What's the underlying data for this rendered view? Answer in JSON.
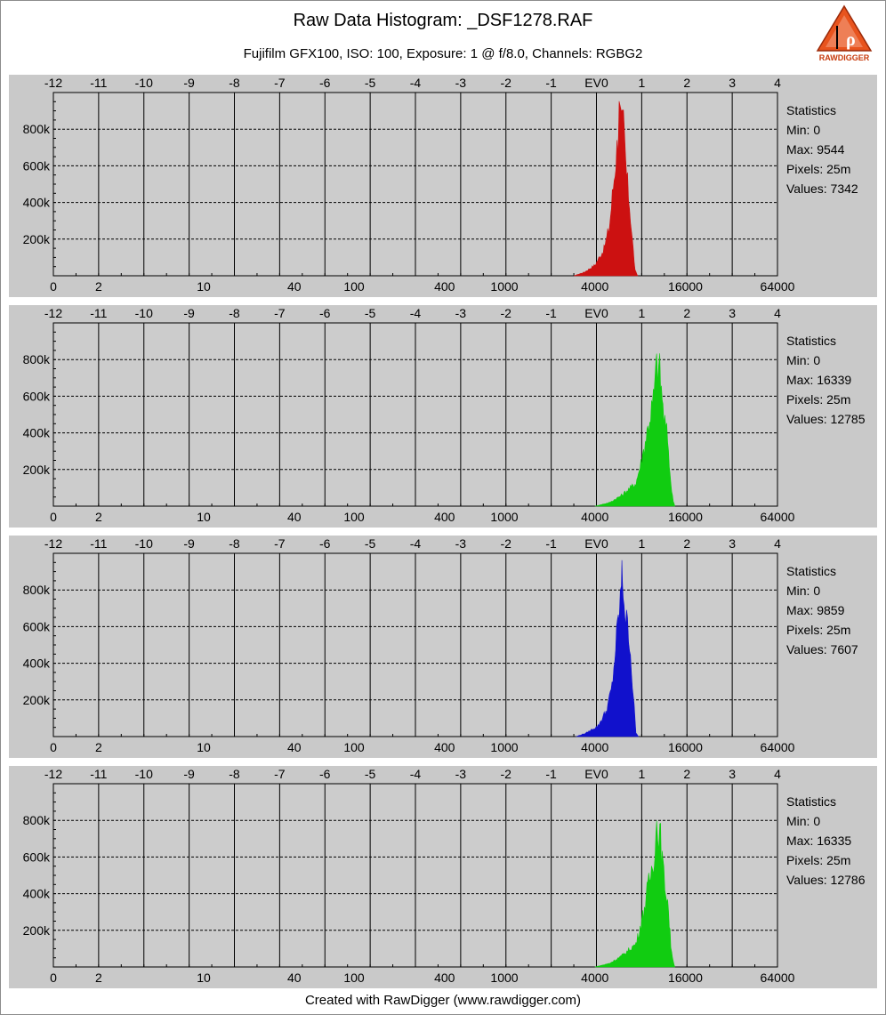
{
  "title": "Raw Data Histogram: _DSF1278.RAF",
  "subtitle": "Fujifilm GFX100, ISO: 100, Exposure: 1 @ f/8.0, Channels: RGBG2",
  "footer": "Created with RawDigger (www.rawdigger.com)",
  "logo_text": "RAWDIGGER",
  "colors": {
    "panel_bg": "#c9c9c9",
    "plot_bg": "#cccccc",
    "red": "#cc1111",
    "green": "#11cc11",
    "blue": "#1111cc",
    "logo_orange": "#e8541e"
  },
  "chart_data": [
    {
      "type": "area",
      "channel": "R",
      "color": "#cc1111",
      "ev_ticks": [
        "-12",
        "-11",
        "-10",
        "-9",
        "-8",
        "-7",
        "-6",
        "-5",
        "-4",
        "-3",
        "-2",
        "-1",
        "EV0",
        "1",
        "2",
        "3",
        "4"
      ],
      "x_ticks": [
        "0",
        "2",
        "10",
        "40",
        "100",
        "400",
        "1000",
        "4000",
        "16000",
        "64000"
      ],
      "y_ticks": [
        "200k",
        "400k",
        "600k",
        "800k"
      ],
      "ylim": [
        0,
        1000000
      ],
      "xlim_log2": [
        0,
        16
      ],
      "stats": {
        "label": "Statistics",
        "min": "Min: 0",
        "max": "Max: 9544",
        "pixels": "Pixels: 25m",
        "values": "Values: 7342"
      },
      "peaks": [
        {
          "value": 2900,
          "count": 0
        },
        {
          "value": 3400,
          "count": 20000
        },
        {
          "value": 4000,
          "count": 60000
        },
        {
          "value": 4600,
          "count": 150000
        },
        {
          "value": 5000,
          "count": 280000
        },
        {
          "value": 5300,
          "count": 500000
        },
        {
          "value": 5600,
          "count": 720000
        },
        {
          "value": 5800,
          "count": 920000
        },
        {
          "value": 6000,
          "count": 820000
        },
        {
          "value": 6200,
          "count": 850000
        },
        {
          "value": 6500,
          "count": 560000
        },
        {
          "value": 6800,
          "count": 400000
        },
        {
          "value": 7100,
          "count": 200000
        },
        {
          "value": 7400,
          "count": 30000
        },
        {
          "value": 7700,
          "count": 0
        }
      ]
    },
    {
      "type": "area",
      "channel": "G",
      "color": "#11cc11",
      "ev_ticks": [
        "-12",
        "-11",
        "-10",
        "-9",
        "-8",
        "-7",
        "-6",
        "-5",
        "-4",
        "-3",
        "-2",
        "-1",
        "EV0",
        "1",
        "2",
        "3",
        "4"
      ],
      "x_ticks": [
        "0",
        "2",
        "10",
        "40",
        "100",
        "400",
        "1000",
        "4000",
        "16000",
        "64000"
      ],
      "y_ticks": [
        "200k",
        "400k",
        "600k",
        "800k"
      ],
      "ylim": [
        0,
        1000000
      ],
      "xlim_log2": [
        0,
        16
      ],
      "stats": {
        "label": "Statistics",
        "min": "Min: 0",
        "max": "Max: 16339",
        "pixels": "Pixels: 25m",
        "values": "Values: 12785"
      },
      "peaks": [
        {
          "value": 4000,
          "count": 0
        },
        {
          "value": 5000,
          "count": 20000
        },
        {
          "value": 6000,
          "count": 60000
        },
        {
          "value": 7500,
          "count": 130000
        },
        {
          "value": 8200,
          "count": 260000
        },
        {
          "value": 9000,
          "count": 440000
        },
        {
          "value": 9800,
          "count": 600000
        },
        {
          "value": 10300,
          "count": 800000
        },
        {
          "value": 10800,
          "count": 760000
        },
        {
          "value": 11500,
          "count": 500000
        },
        {
          "value": 12200,
          "count": 380000
        },
        {
          "value": 12800,
          "count": 120000
        },
        {
          "value": 13300,
          "count": 30000
        },
        {
          "value": 13600,
          "count": 0
        }
      ]
    },
    {
      "type": "area",
      "channel": "B",
      "color": "#1111cc",
      "ev_ticks": [
        "-12",
        "-11",
        "-10",
        "-9",
        "-8",
        "-7",
        "-6",
        "-5",
        "-4",
        "-3",
        "-2",
        "-1",
        "EV0",
        "1",
        "2",
        "3",
        "4"
      ],
      "x_ticks": [
        "0",
        "2",
        "10",
        "40",
        "100",
        "400",
        "1000",
        "4000",
        "16000",
        "64000"
      ],
      "y_ticks": [
        "200k",
        "400k",
        "600k",
        "800k"
      ],
      "ylim": [
        0,
        1000000
      ],
      "xlim_log2": [
        0,
        16
      ],
      "stats": {
        "label": "Statistics",
        "min": "Min: 0",
        "max": "Max: 9859",
        "pixels": "Pixels: 25m",
        "values": "Values: 7607"
      },
      "peaks": [
        {
          "value": 3000,
          "count": 0
        },
        {
          "value": 3500,
          "count": 20000
        },
        {
          "value": 4200,
          "count": 60000
        },
        {
          "value": 4800,
          "count": 150000
        },
        {
          "value": 5200,
          "count": 280000
        },
        {
          "value": 5500,
          "count": 500000
        },
        {
          "value": 5800,
          "count": 700000
        },
        {
          "value": 6000,
          "count": 850000
        },
        {
          "value": 6100,
          "count": 910000
        },
        {
          "value": 6400,
          "count": 660000
        },
        {
          "value": 6800,
          "count": 560000
        },
        {
          "value": 7100,
          "count": 300000
        },
        {
          "value": 7500,
          "count": 20000
        },
        {
          "value": 7800,
          "count": 0
        }
      ]
    },
    {
      "type": "area",
      "channel": "G2",
      "color": "#11cc11",
      "ev_ticks": [
        "-12",
        "-11",
        "-10",
        "-9",
        "-8",
        "-7",
        "-6",
        "-5",
        "-4",
        "-3",
        "-2",
        "-1",
        "EV0",
        "1",
        "2",
        "3",
        "4"
      ],
      "x_ticks": [
        "0",
        "2",
        "10",
        "40",
        "100",
        "400",
        "1000",
        "4000",
        "16000",
        "64000"
      ],
      "y_ticks": [
        "200k",
        "400k",
        "600k",
        "800k"
      ],
      "ylim": [
        0,
        1000000
      ],
      "xlim_log2": [
        0,
        16
      ],
      "stats": {
        "label": "Statistics",
        "min": "Min: 0",
        "max": "Max: 16335",
        "pixels": "Pixels: 25m",
        "values": "Values: 12786"
      },
      "peaks": [
        {
          "value": 4000,
          "count": 0
        },
        {
          "value": 5000,
          "count": 20000
        },
        {
          "value": 6000,
          "count": 60000
        },
        {
          "value": 7500,
          "count": 130000
        },
        {
          "value": 8200,
          "count": 260000
        },
        {
          "value": 9000,
          "count": 440000
        },
        {
          "value": 9800,
          "count": 600000
        },
        {
          "value": 10300,
          "count": 800000
        },
        {
          "value": 10800,
          "count": 760000
        },
        {
          "value": 11500,
          "count": 500000
        },
        {
          "value": 12200,
          "count": 380000
        },
        {
          "value": 12800,
          "count": 120000
        },
        {
          "value": 13300,
          "count": 30000
        },
        {
          "value": 13600,
          "count": 0
        }
      ]
    }
  ]
}
